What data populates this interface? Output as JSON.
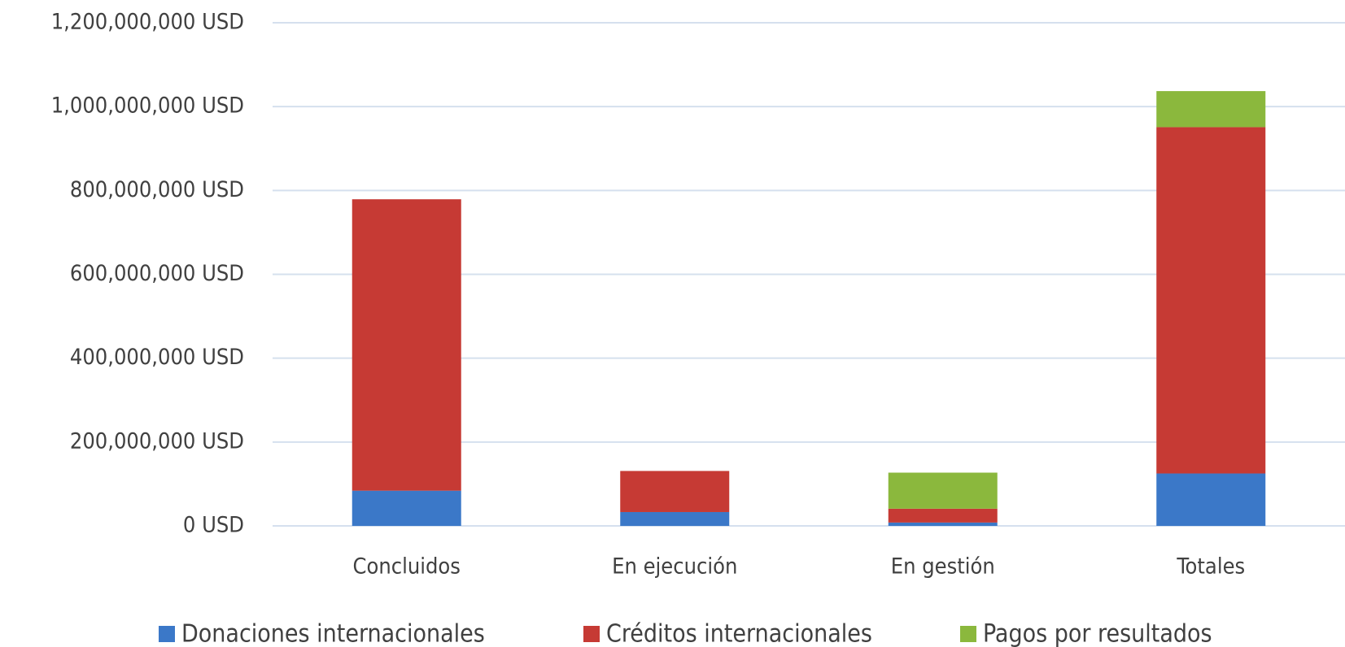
{
  "chart_data": {
    "type": "stacked_bar",
    "categories": [
      "Concluidos",
      "En ejecución",
      "En gestión",
      "Totales"
    ],
    "series": [
      {
        "name": "Donaciones internacionales",
        "color": "#3b78c8",
        "values": [
          84000000,
          33000000,
          8000000,
          125000000
        ]
      },
      {
        "name": "Créditos internacionales",
        "color": "#c63a34",
        "values": [
          695000000,
          98000000,
          33000000,
          826000000
        ]
      },
      {
        "name": "Pagos por resultados",
        "color": "#8bb83d",
        "values": [
          0,
          0,
          86000000,
          86000000
        ]
      }
    ],
    "ylim": [
      0,
      1200000000
    ],
    "yticks": [
      {
        "value": 0,
        "label": "0 USD"
      },
      {
        "value": 200000000,
        "label": "200,000,000 USD"
      },
      {
        "value": 400000000,
        "label": "400,000,000 USD"
      },
      {
        "value": 600000000,
        "label": "600,000,000 USD"
      },
      {
        "value": 800000000,
        "label": "800,000,000 USD"
      },
      {
        "value": 1000000000,
        "label": "1,000,000,000 USD"
      },
      {
        "value": 1200000000,
        "label": "1,200,000,000 USD"
      }
    ],
    "grid": true,
    "legend": "bottom"
  }
}
